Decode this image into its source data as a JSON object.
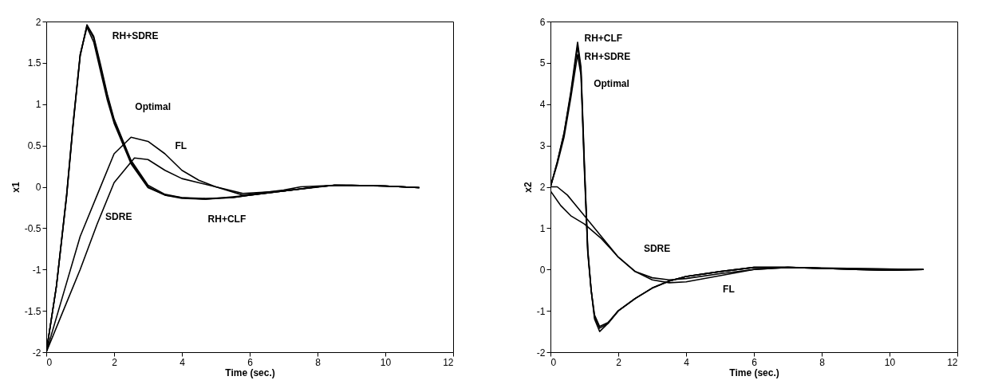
{
  "chart_data": [
    {
      "type": "line",
      "xlabel": "Time (sec.)",
      "ylabel": "x1",
      "xlim": [
        0,
        12
      ],
      "ylim": [
        -2,
        2
      ],
      "xticks": [
        0,
        2,
        4,
        6,
        8,
        10,
        12
      ],
      "yticks": [
        -2,
        -1.5,
        -1,
        -0.5,
        0,
        0.5,
        1,
        1.5,
        2
      ],
      "series": [
        {
          "name": "Optimal",
          "color": "#000000",
          "x": [
            0,
            0.3,
            0.6,
            0.8,
            1,
            1.2,
            1.4,
            1.6,
            1.8,
            2,
            2.5,
            3,
            3.5,
            4,
            4.7,
            5.5,
            6,
            7,
            8,
            8.5,
            9,
            10,
            11
          ],
          "values": [
            -2,
            -1.2,
            -0.1,
            0.8,
            1.6,
            1.95,
            1.8,
            1.45,
            1.1,
            0.8,
            0.3,
            0,
            -0.1,
            -0.13,
            -0.15,
            -0.13,
            -0.1,
            -0.05,
            0,
            0.02,
            0.02,
            0.01,
            -0.01
          ]
        },
        {
          "name": "RH+SDRE",
          "color": "#000000",
          "x": [
            0,
            0.3,
            0.6,
            0.8,
            1,
            1.2,
            1.4,
            1.6,
            1.8,
            2,
            2.5,
            3,
            3.5,
            4,
            4.7,
            5.5,
            6,
            7,
            8,
            8.5,
            9,
            10,
            11
          ],
          "values": [
            -2,
            -1.2,
            -0.1,
            0.8,
            1.6,
            1.93,
            1.75,
            1.4,
            1.05,
            0.77,
            0.28,
            -0.01,
            -0.1,
            -0.14,
            -0.15,
            -0.12,
            -0.1,
            -0.05,
            0,
            0.02,
            0.02,
            0.01,
            -0.01
          ]
        },
        {
          "name": "RH+CLF",
          "color": "#000000",
          "x": [
            0,
            0.3,
            0.6,
            0.8,
            1,
            1.2,
            1.4,
            1.6,
            1.8,
            2,
            2.5,
            3,
            3.5,
            4,
            4.7,
            5.5,
            6,
            7,
            8,
            8.5,
            9,
            10,
            11
          ],
          "values": [
            -2,
            -1.2,
            -0.12,
            0.78,
            1.58,
            1.96,
            1.82,
            1.48,
            1.12,
            0.82,
            0.32,
            0.02,
            -0.09,
            -0.13,
            -0.14,
            -0.13,
            -0.1,
            -0.05,
            0,
            0.02,
            0.02,
            0.01,
            -0.01
          ]
        },
        {
          "name": "SDRE",
          "color": "#000000",
          "x": [
            0,
            0.5,
            1,
            1.5,
            2,
            2.6,
            3,
            3.5,
            4,
            5,
            5.8,
            7,
            8.5,
            10,
            11
          ],
          "values": [
            -2,
            -1.5,
            -1,
            -0.45,
            0.05,
            0.35,
            0.33,
            0.2,
            0.1,
            0,
            -0.08,
            -0.05,
            0.02,
            0.01,
            -0.01
          ]
        },
        {
          "name": "FL",
          "color": "#000000",
          "x": [
            0,
            0.5,
            1,
            1.5,
            2,
            2.5,
            3,
            3.5,
            4,
            4.5,
            5,
            5.8,
            7,
            7.5,
            8.5,
            10,
            11
          ],
          "values": [
            -2,
            -1.3,
            -0.6,
            -0.1,
            0.4,
            0.6,
            0.55,
            0.4,
            0.2,
            0.08,
            0,
            -0.1,
            -0.04,
            0,
            0.02,
            0.01,
            -0.01
          ]
        }
      ]
    },
    {
      "type": "line",
      "xlabel": "Time (sec.)",
      "ylabel": "x2",
      "xlim": [
        0,
        12
      ],
      "ylim": [
        -2,
        6
      ],
      "xticks": [
        0,
        2,
        4,
        6,
        8,
        10,
        12
      ],
      "yticks": [
        -2,
        -1,
        0,
        1,
        2,
        3,
        4,
        5,
        6
      ],
      "series": [
        {
          "name": "RH+CLF",
          "color": "#000000",
          "x": [
            0,
            0.2,
            0.4,
            0.6,
            0.8,
            0.9,
            1,
            1.1,
            1.2,
            1.3,
            1.45,
            1.7,
            2,
            2.5,
            3,
            3.5,
            4,
            5,
            6,
            7,
            8,
            9,
            10,
            11
          ],
          "values": [
            2,
            2.6,
            3.3,
            4.3,
            5.5,
            4.9,
            2.6,
            0.5,
            -0.5,
            -1.2,
            -1.5,
            -1.3,
            -1,
            -0.7,
            -0.45,
            -0.28,
            -0.17,
            -0.05,
            0.05,
            0.05,
            0.03,
            0,
            -0.02,
            0
          ]
        },
        {
          "name": "RH+SDRE",
          "color": "#000000",
          "x": [
            0,
            0.2,
            0.4,
            0.6,
            0.8,
            0.9,
            1,
            1.1,
            1.2,
            1.3,
            1.45,
            1.7,
            2,
            2.5,
            3,
            3.5,
            4,
            5,
            6,
            7,
            8,
            9,
            10,
            11
          ],
          "values": [
            2,
            2.6,
            3.3,
            4.25,
            5.4,
            4.8,
            2.5,
            0.45,
            -0.5,
            -1.15,
            -1.42,
            -1.3,
            -1,
            -0.7,
            -0.45,
            -0.28,
            -0.17,
            -0.05,
            0.05,
            0.05,
            0.03,
            0,
            -0.02,
            0
          ]
        },
        {
          "name": "Optimal",
          "color": "#000000",
          "x": [
            0,
            0.2,
            0.4,
            0.6,
            0.8,
            0.9,
            1,
            1.1,
            1.2,
            1.3,
            1.45,
            1.7,
            2,
            2.5,
            3,
            3.5,
            4,
            5,
            6,
            7,
            8,
            9,
            10,
            11
          ],
          "values": [
            2,
            2.55,
            3.2,
            4.15,
            5.2,
            4.7,
            2.4,
            0.4,
            -0.5,
            -1.1,
            -1.38,
            -1.28,
            -1,
            -0.7,
            -0.45,
            -0.28,
            -0.17,
            -0.05,
            0.05,
            0.05,
            0.03,
            0,
            -0.02,
            0
          ]
        },
        {
          "name": "SDRE",
          "color": "#000000",
          "x": [
            0,
            0.2,
            0.5,
            1,
            1.5,
            2,
            2.5,
            3,
            3.5,
            4,
            5,
            6,
            7,
            8,
            11
          ],
          "values": [
            2,
            2,
            1.8,
            1.3,
            0.8,
            0.3,
            -0.05,
            -0.2,
            -0.25,
            -0.22,
            -0.1,
            0,
            0.05,
            0.03,
            0
          ]
        },
        {
          "name": "FL",
          "color": "#000000",
          "x": [
            0,
            0.3,
            0.6,
            1,
            1.5,
            2,
            2.5,
            3,
            3.5,
            4,
            5,
            6,
            7,
            11
          ],
          "values": [
            1.9,
            1.55,
            1.3,
            1.1,
            0.75,
            0.3,
            -0.05,
            -0.25,
            -0.32,
            -0.3,
            -0.15,
            0,
            0.05,
            0
          ]
        }
      ]
    }
  ]
}
